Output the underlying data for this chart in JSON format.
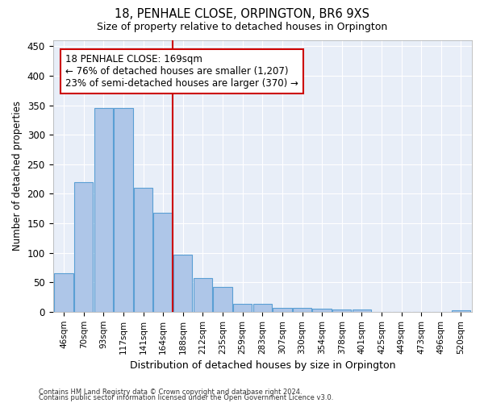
{
  "title1": "18, PENHALE CLOSE, ORPINGTON, BR6 9XS",
  "title2": "Size of property relative to detached houses in Orpington",
  "xlabel": "Distribution of detached houses by size in Orpington",
  "ylabel": "Number of detached properties",
  "categories": [
    "46sqm",
    "70sqm",
    "93sqm",
    "117sqm",
    "141sqm",
    "164sqm",
    "188sqm",
    "212sqm",
    "235sqm",
    "259sqm",
    "283sqm",
    "307sqm",
    "330sqm",
    "354sqm",
    "378sqm",
    "401sqm",
    "425sqm",
    "449sqm",
    "473sqm",
    "496sqm",
    "520sqm"
  ],
  "values": [
    65,
    220,
    345,
    345,
    210,
    168,
    97,
    57,
    42,
    13,
    13,
    7,
    7,
    5,
    4,
    4,
    0,
    0,
    0,
    0,
    3
  ],
  "bar_color": "#aec6e8",
  "bar_edge_color": "#5a9fd4",
  "background_color": "#ffffff",
  "grid_color": "#cccccc",
  "red_line_x": 6.0,
  "annotation_text": "18 PENHALE CLOSE: 169sqm\n← 76% of detached houses are smaller (1,207)\n23% of semi-detached houses are larger (370) →",
  "annotation_box_color": "#ffffff",
  "annotation_box_edge": "#cc0000",
  "ylim": [
    0,
    460
  ],
  "yticks": [
    0,
    50,
    100,
    150,
    200,
    250,
    300,
    350,
    400,
    450
  ],
  "footer1": "Contains HM Land Registry data © Crown copyright and database right 2024.",
  "footer2": "Contains public sector information licensed under the Open Government Licence v3.0."
}
